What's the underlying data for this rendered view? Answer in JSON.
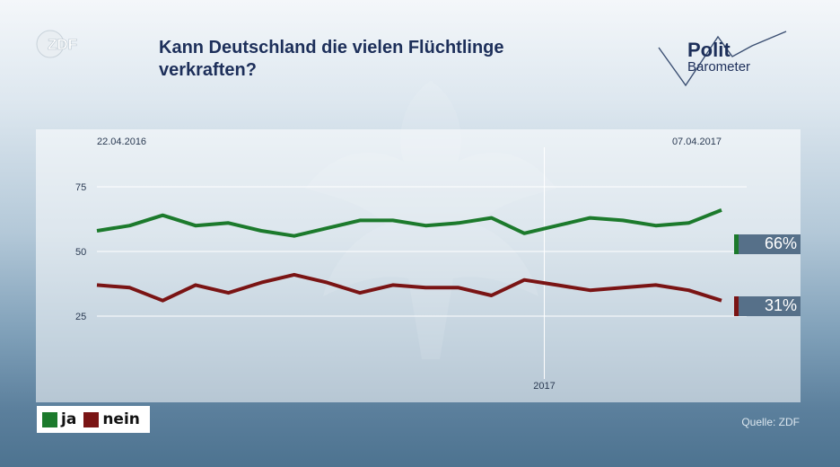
{
  "header": {
    "logo_text": "ZDF",
    "title_line1": "Kann Deutschland die vielen Flüchtlinge",
    "title_line2": "verkraften?",
    "brand_top": "Polit",
    "brand_bottom": "Barometer"
  },
  "chart_data": {
    "type": "line",
    "title": "Kann Deutschland die vielen Flüchtlinge verkraften?",
    "date_start": "22.04.2016",
    "date_end": "07.04.2017",
    "year_marker": "2017",
    "y_ticks": [
      "75",
      "50",
      "25"
    ],
    "ylim": [
      15,
      95
    ],
    "grid": true,
    "series": [
      {
        "name": "ja",
        "color": "#1c7a2c",
        "values": [
          58,
          60,
          64,
          60,
          61,
          58,
          56,
          59,
          62,
          62,
          60,
          61,
          63,
          57,
          60,
          63,
          62,
          60,
          61,
          66
        ]
      },
      {
        "name": "nein",
        "color": "#7a1414",
        "values": [
          37,
          36,
          31,
          37,
          34,
          38,
          41,
          38,
          34,
          37,
          36,
          36,
          33,
          39,
          37,
          35,
          36,
          37,
          35,
          31
        ]
      }
    ],
    "end_labels": [
      "66%",
      "31%"
    ]
  },
  "legend": {
    "ja": "ja",
    "nein": "nein"
  },
  "footer": {
    "source": "Quelle: ZDF"
  },
  "colors": {
    "ja": "#1c7a2c",
    "nein": "#7a1414",
    "title": "#1d2f5a"
  }
}
